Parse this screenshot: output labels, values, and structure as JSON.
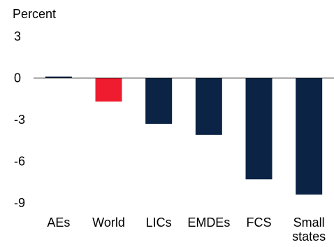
{
  "chart_data": {
    "type": "bar",
    "ylabel": "Percent",
    "categories": [
      "AEs",
      "World",
      "LICs",
      "EMDEs",
      "FCS",
      "Small states"
    ],
    "category_lines": [
      [
        "AEs"
      ],
      [
        "World"
      ],
      [
        "LICs"
      ],
      [
        "EMDEs"
      ],
      [
        "FCS"
      ],
      [
        "Small",
        "states"
      ]
    ],
    "values": [
      0.1,
      -1.7,
      -3.3,
      -4.1,
      -7.3,
      -8.4
    ],
    "bar_colors": [
      "#0b2345",
      "#ee1c2e",
      "#0b2345",
      "#0b2345",
      "#0b2345",
      "#0b2345"
    ],
    "yticks": [
      "3",
      "0",
      "-3",
      "-6",
      "-9"
    ],
    "ylim": [
      -9,
      3
    ],
    "grid": false,
    "legend": "none"
  }
}
